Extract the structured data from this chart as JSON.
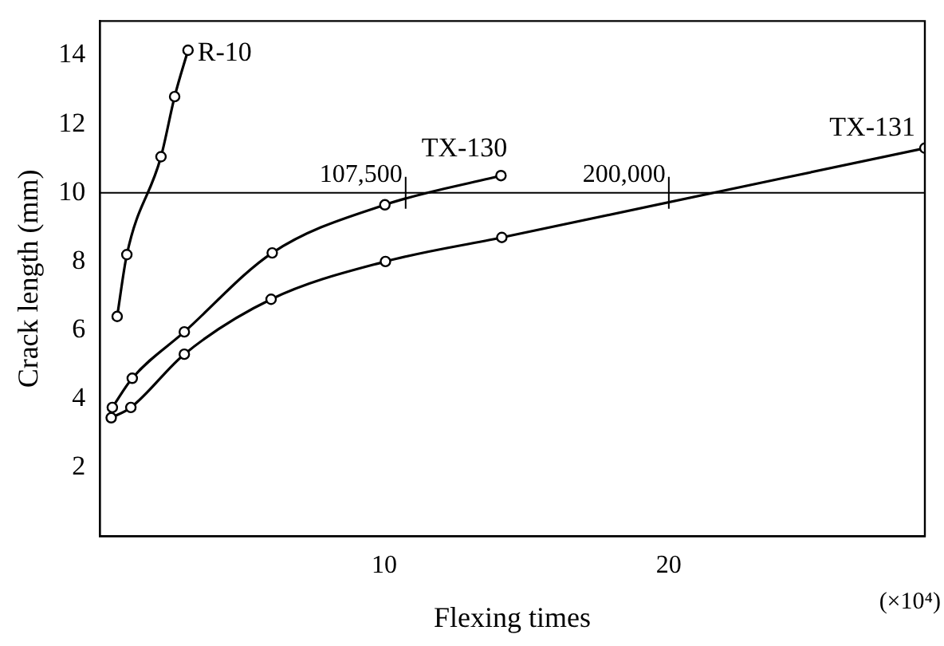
{
  "chart_data": {
    "type": "line",
    "xlabel": "Flexing times",
    "ylabel": "Crack length (mm)",
    "xlim": [
      0,
      29
    ],
    "xticks": [
      10,
      20
    ],
    "ylim": [
      0,
      15
    ],
    "yticks": [
      2,
      4,
      6,
      8,
      10,
      12,
      14
    ],
    "grid": false,
    "marker": "circle",
    "line_style": "solid",
    "series": [
      {
        "name": "R-10",
        "color": "#000000",
        "x": [
          0.61,
          0.95,
          2.15,
          2.63,
          3.1
        ],
        "values": [
          6.4,
          8.2,
          11.05,
          12.8,
          14.15
        ]
      },
      {
        "name": "TX-130",
        "color": "#000000",
        "x": [
          0.44,
          1.14,
          2.97,
          6.06,
          10.02,
          14.1
        ],
        "values": [
          3.75,
          4.6,
          5.95,
          8.25,
          9.65,
          10.5
        ]
      },
      {
        "name": "TX-131",
        "color": "#000000",
        "x": [
          0.4,
          1.09,
          2.97,
          6.02,
          10.04,
          14.13,
          29
        ],
        "values": [
          3.45,
          3.75,
          5.3,
          6.9,
          8.0,
          8.7,
          11.3
        ]
      }
    ],
    "ref_lines": [
      {
        "axis": "y",
        "value": 10,
        "color": "#000000"
      }
    ],
    "annotations": [
      {
        "text": "107,500",
        "x": 10.75,
        "y": 10
      },
      {
        "text": "200,000",
        "x": 20,
        "y": 10
      },
      "(×10⁴)"
    ]
  }
}
